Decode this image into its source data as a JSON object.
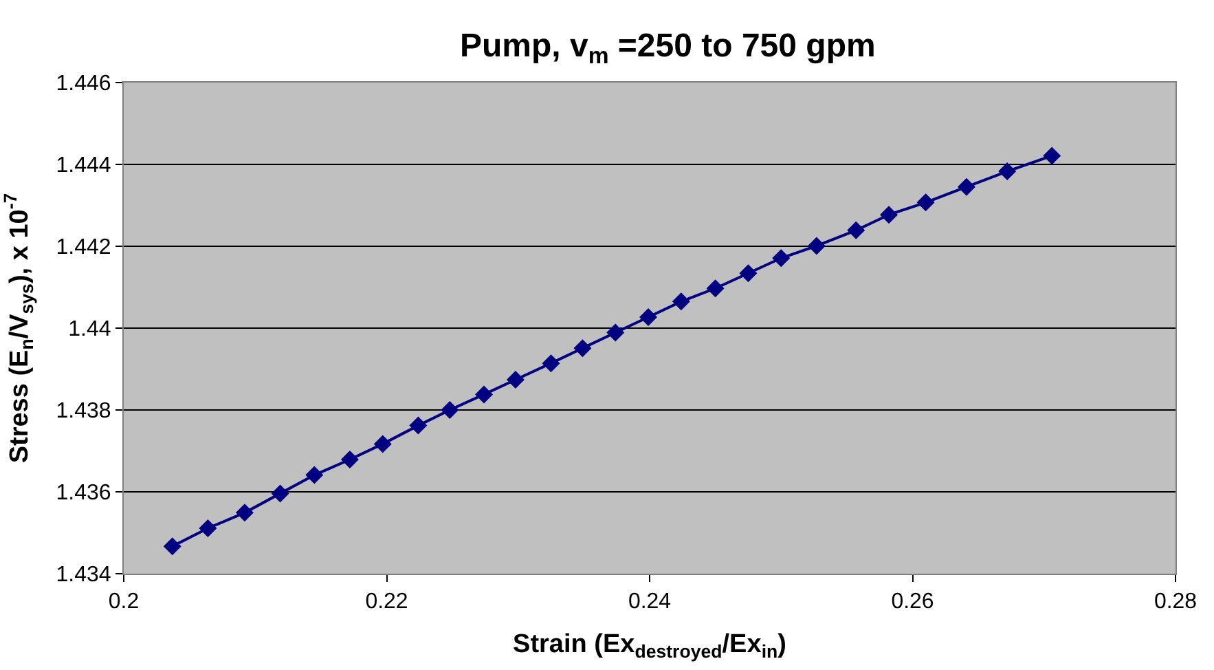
{
  "chart_data": {
    "type": "line",
    "title": "Pump, v$_{m}$ =250 to 750 gpm",
    "xlabel": "Strain (Ex$_{destroyed}$/Ex$_{in}$)",
    "ylabel": "Stress (E$_{n}$/V$_{sys}$), x 10$^{-7}$",
    "x": [
      0.2037,
      0.2064,
      0.2092,
      0.2119,
      0.2145,
      0.2172,
      0.2197,
      0.2224,
      0.2248,
      0.2274,
      0.2298,
      0.2325,
      0.2349,
      0.2374,
      0.2399,
      0.2424,
      0.245,
      0.2475,
      0.25,
      0.2527,
      0.2557,
      0.2582,
      0.261,
      0.2641,
      0.2672,
      0.2706
    ],
    "series": [
      {
        "color": "#000080",
        "values": [
          1.43467,
          1.43511,
          1.43549,
          1.43596,
          1.43641,
          1.43679,
          1.43717,
          1.43762,
          1.438,
          1.43838,
          1.43874,
          1.43914,
          1.43951,
          1.43989,
          1.44027,
          1.44065,
          1.44097,
          1.44134,
          1.44171,
          1.44201,
          1.44239,
          1.44277,
          1.44307,
          1.44345,
          1.44383,
          1.44421
        ]
      }
    ],
    "xlim": [
      0.2,
      0.28
    ],
    "xticks": [
      0.2,
      0.22,
      0.24,
      0.26,
      0.28
    ],
    "ylim": [
      1.434,
      1.446
    ],
    "yticks": [
      1.434,
      1.436,
      1.438,
      1.44,
      1.442,
      1.444,
      1.446
    ],
    "grid": "y",
    "marker": "diamond",
    "line_style": "solid"
  }
}
